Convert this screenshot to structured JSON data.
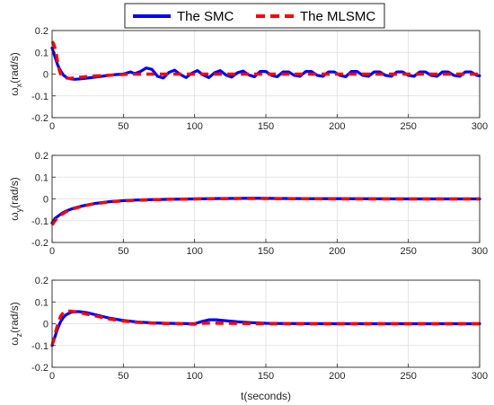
{
  "legend": {
    "entries": [
      {
        "label": "The SMC",
        "color": "#0000ff",
        "style": "solid"
      },
      {
        "label": "The MLSMC",
        "color": "#ff0000",
        "style": "dashed"
      }
    ]
  },
  "xlabel": "t(seconds)",
  "chart_data": [
    {
      "type": "line",
      "ylabel": {
        "sym": "ω",
        "sub": "x",
        "unit": "(rad/s)"
      },
      "xlim": [
        0,
        300
      ],
      "ylim": [
        -0.2,
        0.2
      ],
      "xticks": [
        0,
        50,
        100,
        150,
        200,
        250,
        300
      ],
      "yticks": [
        -0.2,
        -0.1,
        0,
        0.1,
        0.2
      ],
      "grid": true,
      "series": [
        {
          "name": "The SMC",
          "color": "#0000ff",
          "x": [
            0,
            2,
            4,
            6,
            8,
            10,
            13,
            16,
            20,
            25,
            30,
            35,
            40,
            45,
            50,
            55,
            58,
            62,
            66,
            70,
            74,
            78,
            82,
            86,
            90,
            94,
            98,
            102,
            106,
            110,
            114,
            118,
            122,
            126,
            130,
            134,
            138,
            142,
            146,
            150,
            154,
            158,
            162,
            166,
            170,
            174,
            178,
            182,
            186,
            190,
            194,
            198,
            202,
            206,
            210,
            214,
            218,
            222,
            226,
            230,
            234,
            238,
            242,
            246,
            250,
            254,
            258,
            262,
            266,
            270,
            274,
            278,
            282,
            286,
            290,
            294,
            298,
            300
          ],
          "y": [
            0.12,
            0.08,
            0.04,
            0.015,
            -0.005,
            -0.015,
            -0.022,
            -0.024,
            -0.022,
            -0.018,
            -0.014,
            -0.01,
            -0.006,
            -0.002,
            0.0,
            0.01,
            0.002,
            0.012,
            0.028,
            0.022,
            -0.01,
            -0.018,
            0.008,
            0.018,
            -0.002,
            -0.016,
            0.004,
            0.016,
            -0.004,
            -0.016,
            0.006,
            0.016,
            -0.004,
            -0.014,
            0.006,
            0.014,
            -0.004,
            -0.012,
            0.012,
            0.012,
            -0.006,
            -0.012,
            0.01,
            0.01,
            -0.006,
            -0.01,
            0.012,
            0.012,
            -0.006,
            -0.01,
            0.01,
            0.01,
            -0.006,
            -0.012,
            0.012,
            0.012,
            -0.006,
            -0.01,
            0.01,
            0.01,
            -0.006,
            -0.01,
            0.01,
            0.01,
            -0.006,
            -0.01,
            0.01,
            0.01,
            -0.006,
            -0.01,
            0.01,
            0.01,
            -0.006,
            -0.01,
            0.01,
            0.01,
            -0.006,
            -0.008
          ]
        },
        {
          "name": "The MLSMC",
          "color": "#ff0000",
          "x": [
            0,
            1,
            2,
            3,
            4,
            5,
            6,
            8,
            10,
            12,
            15,
            20,
            30,
            40,
            50,
            55,
            60,
            80,
            100,
            150,
            200,
            250,
            300
          ],
          "y": [
            0.15,
            0.14,
            0.12,
            0.09,
            0.05,
            0.02,
            0.0,
            -0.012,
            -0.018,
            -0.02,
            -0.018,
            -0.014,
            -0.009,
            -0.005,
            -0.002,
            0.0,
            0.0,
            0.0,
            0.0,
            0.0,
            0.0,
            0.0,
            0.0
          ]
        }
      ]
    },
    {
      "type": "line",
      "ylabel": {
        "sym": "ω",
        "sub": "y",
        "unit": "(rad/s)"
      },
      "xlim": [
        0,
        300
      ],
      "ylim": [
        -0.2,
        0.2
      ],
      "xticks": [
        0,
        50,
        100,
        150,
        200,
        250,
        300
      ],
      "yticks": [
        -0.2,
        -0.1,
        0,
        0.1,
        0.2
      ],
      "grid": true,
      "series": [
        {
          "name": "The SMC",
          "color": "#0000ff",
          "x": [
            0,
            2,
            4,
            6,
            8,
            10,
            15,
            20,
            25,
            30,
            40,
            50,
            60,
            70,
            80,
            100,
            120,
            140,
            160,
            180,
            200,
            250,
            300
          ],
          "y": [
            -0.11,
            -0.09,
            -0.08,
            -0.07,
            -0.062,
            -0.055,
            -0.043,
            -0.034,
            -0.027,
            -0.021,
            -0.013,
            -0.008,
            -0.005,
            -0.003,
            -0.002,
            0.0,
            0.002,
            0.003,
            0.002,
            0.001,
            0.001,
            0.0,
            0.0
          ]
        },
        {
          "name": "The MLSMC",
          "color": "#ff0000",
          "x": [
            0,
            2,
            4,
            6,
            8,
            10,
            15,
            20,
            25,
            30,
            40,
            50,
            60,
            70,
            80,
            100,
            120,
            140,
            160,
            180,
            200,
            250,
            300
          ],
          "y": [
            -0.12,
            -0.1,
            -0.085,
            -0.075,
            -0.066,
            -0.058,
            -0.045,
            -0.036,
            -0.028,
            -0.022,
            -0.014,
            -0.009,
            -0.006,
            -0.004,
            -0.002,
            0.0,
            0.001,
            0.002,
            0.001,
            0.001,
            0.0,
            0.0,
            0.0
          ]
        }
      ]
    },
    {
      "type": "line",
      "ylabel": {
        "sym": "ω",
        "sub": "z",
        "unit": "(rad/s)"
      },
      "xlim": [
        0,
        300
      ],
      "ylim": [
        -0.2,
        0.2
      ],
      "xticks": [
        0,
        50,
        100,
        150,
        200,
        250,
        300
      ],
      "yticks": [
        -0.2,
        -0.1,
        0,
        0.1,
        0.2
      ],
      "grid": true,
      "series": [
        {
          "name": "The SMC",
          "color": "#0000ff",
          "x": [
            0,
            2,
            4,
            6,
            8,
            10,
            13,
            16,
            20,
            25,
            30,
            35,
            40,
            50,
            60,
            70,
            80,
            90,
            100,
            105,
            110,
            115,
            120,
            130,
            140,
            150,
            160,
            200,
            250,
            300
          ],
          "y": [
            -0.1,
            -0.06,
            -0.02,
            0.01,
            0.03,
            0.042,
            0.052,
            0.056,
            0.055,
            0.05,
            0.042,
            0.034,
            0.026,
            0.015,
            0.008,
            0.004,
            0.002,
            0.001,
            0.0,
            0.01,
            0.018,
            0.018,
            0.015,
            0.009,
            0.005,
            0.002,
            0.001,
            0.0,
            0.0,
            0.0
          ]
        },
        {
          "name": "The MLSMC",
          "color": "#ff0000",
          "x": [
            0,
            2,
            4,
            6,
            8,
            10,
            13,
            16,
            20,
            25,
            30,
            35,
            40,
            50,
            60,
            70,
            80,
            90,
            100,
            105,
            110,
            120,
            150,
            200,
            250,
            300
          ],
          "y": [
            -0.1,
            -0.05,
            0.0,
            0.035,
            0.052,
            0.058,
            0.058,
            0.055,
            0.05,
            0.043,
            0.036,
            0.029,
            0.022,
            0.012,
            0.006,
            0.003,
            0.001,
            0.0,
            -0.002,
            0.002,
            0.003,
            0.002,
            0.0,
            0.0,
            0.0,
            0.0
          ]
        }
      ]
    }
  ]
}
